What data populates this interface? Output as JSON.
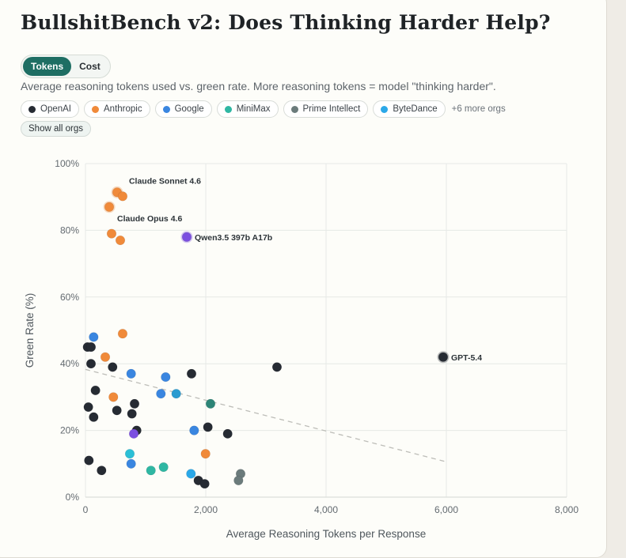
{
  "title": "BullshitBench v2: Does Thinking Harder Help?",
  "toggle": {
    "options": [
      "Tokens",
      "Cost"
    ],
    "selected": "Tokens"
  },
  "subtitle": "Average reasoning tokens used vs. green rate. More reasoning tokens = model \"thinking harder\".",
  "orgs": [
    {
      "name": "OpenAI",
      "color": "#262b33"
    },
    {
      "name": "Anthropic",
      "color": "#f08a3a"
    },
    {
      "name": "Google",
      "color": "#3a86e0"
    },
    {
      "name": "MiniMax",
      "color": "#2fb7a3"
    },
    {
      "name": "Prime Intellect",
      "color": "#6b7b7b"
    },
    {
      "name": "ByteDance",
      "color": "#2ba8e8"
    }
  ],
  "more_orgs": "+6 more orgs",
  "show_all_label": "Show all orgs",
  "other_colors": {
    "purple": "#7b4fe0",
    "darkteal": "#2d8577",
    "cyan": "#2bbfd6",
    "steel": "#2a9bd0"
  },
  "chart_data": {
    "type": "scatter",
    "xlabel": "Average Reasoning Tokens per Response",
    "ylabel": "Green Rate (%)",
    "xlim": [
      0,
      8000
    ],
    "ylim": [
      0,
      100
    ],
    "xticks": [
      "0",
      "2,000",
      "4,000",
      "6,000",
      "8,000"
    ],
    "yticks": [
      "0%",
      "20%",
      "40%",
      "60%",
      "80%",
      "100%"
    ],
    "grid": true,
    "trendline": {
      "style": "dashed",
      "from": [
        0,
        38.3
      ],
      "to": [
        6000,
        10.6
      ]
    },
    "points": [
      {
        "x": 526,
        "y": 91.4,
        "org": "Anthropic",
        "label": "Claude Sonnet 4.6"
      },
      {
        "x": 618,
        "y": 90.2,
        "org": "Anthropic"
      },
      {
        "x": 395,
        "y": 87,
        "org": "Anthropic",
        "label": "Claude Opus 4.6"
      },
      {
        "x": 434,
        "y": 79,
        "org": "Anthropic"
      },
      {
        "x": 579,
        "y": 77,
        "org": "Anthropic"
      },
      {
        "x": 1684,
        "y": 78,
        "org": "purple",
        "label": "Qwen3.5 397b A17b"
      },
      {
        "x": 5947,
        "y": 42,
        "org": "OpenAI",
        "label": "GPT-5.4"
      },
      {
        "x": 136,
        "y": 48,
        "org": "Google"
      },
      {
        "x": 618,
        "y": 49,
        "org": "Anthropic"
      },
      {
        "x": 35,
        "y": 45,
        "org": "OpenAI"
      },
      {
        "x": 92,
        "y": 45,
        "org": "OpenAI"
      },
      {
        "x": 329,
        "y": 42,
        "org": "Anthropic"
      },
      {
        "x": 92,
        "y": 40,
        "org": "OpenAI"
      },
      {
        "x": 451,
        "y": 39,
        "org": "OpenAI"
      },
      {
        "x": 759,
        "y": 37,
        "org": "Google"
      },
      {
        "x": 1333,
        "y": 36,
        "org": "Google"
      },
      {
        "x": 1763,
        "y": 37,
        "org": "OpenAI"
      },
      {
        "x": 3184,
        "y": 39,
        "org": "OpenAI"
      },
      {
        "x": 166,
        "y": 32,
        "org": "OpenAI"
      },
      {
        "x": 464,
        "y": 30,
        "org": "Anthropic"
      },
      {
        "x": 1254,
        "y": 31,
        "org": "Google"
      },
      {
        "x": 1509,
        "y": 31,
        "org": "steel"
      },
      {
        "x": 2079,
        "y": 28,
        "org": "darkteal"
      },
      {
        "x": 816,
        "y": 28,
        "org": "OpenAI"
      },
      {
        "x": 48,
        "y": 27,
        "org": "OpenAI"
      },
      {
        "x": 522,
        "y": 26,
        "org": "OpenAI"
      },
      {
        "x": 772,
        "y": 25,
        "org": "OpenAI"
      },
      {
        "x": 136,
        "y": 24,
        "org": "OpenAI"
      },
      {
        "x": 851,
        "y": 20,
        "org": "OpenAI"
      },
      {
        "x": 803,
        "y": 19,
        "org": "purple"
      },
      {
        "x": 1807,
        "y": 20,
        "org": "Google"
      },
      {
        "x": 2035,
        "y": 21,
        "org": "OpenAI"
      },
      {
        "x": 2364,
        "y": 19,
        "org": "OpenAI"
      },
      {
        "x": 737,
        "y": 13,
        "org": "cyan"
      },
      {
        "x": 1996,
        "y": 13,
        "org": "Anthropic"
      },
      {
        "x": 57,
        "y": 11,
        "org": "OpenAI"
      },
      {
        "x": 759,
        "y": 10,
        "org": "Google"
      },
      {
        "x": 267,
        "y": 8,
        "org": "OpenAI"
      },
      {
        "x": 1088,
        "y": 8,
        "org": "MiniMax"
      },
      {
        "x": 1298,
        "y": 9,
        "org": "MiniMax"
      },
      {
        "x": 1754,
        "y": 7,
        "org": "ByteDance"
      },
      {
        "x": 1877,
        "y": 5,
        "org": "OpenAI"
      },
      {
        "x": 1982,
        "y": 4,
        "org": "OpenAI"
      },
      {
        "x": 2579,
        "y": 7,
        "org": "Prime Intellect"
      },
      {
        "x": 2544,
        "y": 5,
        "org": "Prime Intellect"
      }
    ]
  }
}
